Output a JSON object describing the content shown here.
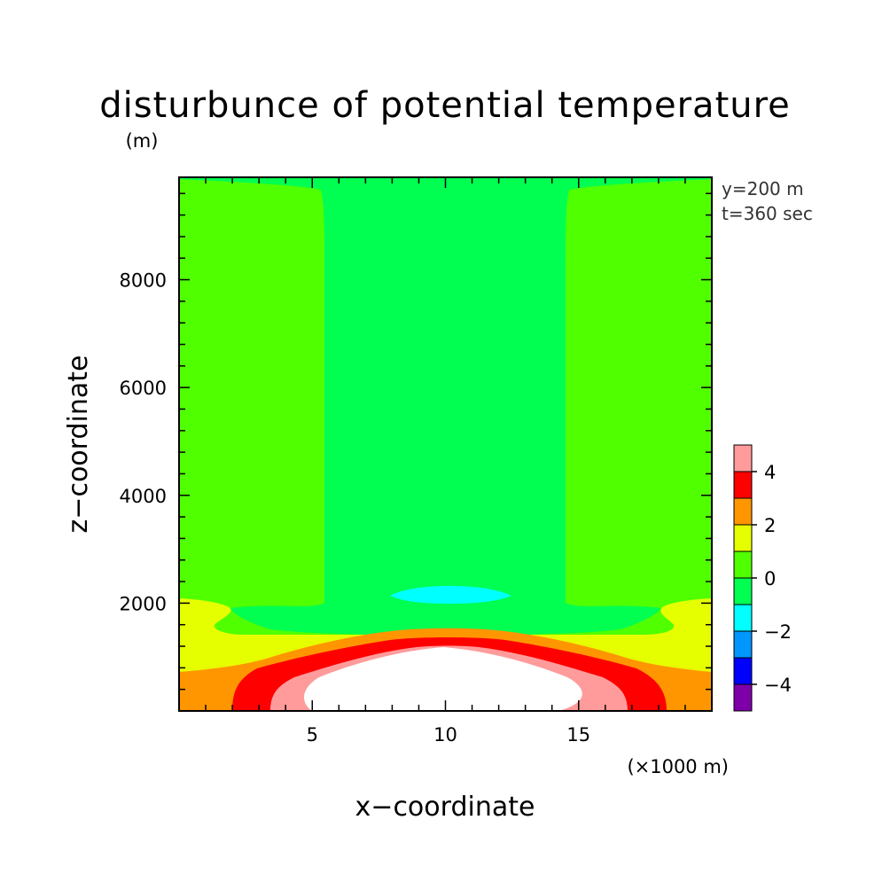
{
  "chart_data": {
    "type": "heatmap",
    "title": "disturbunce of potential temperature",
    "subtitle": "(m)",
    "xlabel": "x−coordinate",
    "ylabel": "z−coordinate",
    "x_unit": "(×1000 m)",
    "annotations": [
      "y=200 m",
      "t=360 sec"
    ],
    "xlim": [
      0,
      20
    ],
    "ylim": [
      0,
      9900
    ],
    "xticks": [
      5,
      10,
      15
    ],
    "xtick_labels": [
      "5",
      "10",
      "15"
    ],
    "yticks": [
      2000,
      4000,
      6000,
      8000
    ],
    "ytick_labels": [
      "2000",
      "4000",
      "6000",
      "8000"
    ],
    "colorbar": {
      "levels": [
        -5,
        -4,
        -3,
        -2,
        -1,
        0,
        1,
        2,
        3,
        4,
        5
      ],
      "tick_values": [
        -4,
        -2,
        0,
        2,
        4
      ],
      "tick_labels": [
        "−4",
        "−2",
        "0",
        "2",
        "4"
      ],
      "colors": [
        "#7d00a8",
        "#0000ff",
        "#0096ff",
        "#00ffff",
        "#00ff50",
        "#50ff00",
        "#e6ff00",
        "#ff9600",
        "#ff0000",
        "#ff9b9b"
      ]
    },
    "regions": [
      {
        "range": [
          0,
          1
        ],
        "color": "#50ff00",
        "description": "outer background"
      },
      {
        "range": [
          -1,
          0
        ],
        "color": "#00ff50",
        "description": "central column and layer above the ridge"
      },
      {
        "range": [
          -2,
          -1
        ],
        "color": "#00ffff",
        "description": "small cool pocket near x=10, z=2200"
      },
      {
        "range": [
          1,
          2
        ],
        "color": "#e6ff00",
        "description": "low-level band"
      },
      {
        "range": [
          2,
          3
        ],
        "color": "#ff9600",
        "description": "near-surface band"
      },
      {
        "range": [
          3,
          4
        ],
        "color": "#ff0000",
        "description": "warm arch"
      },
      {
        "range": [
          4,
          5
        ],
        "color": "#ff9b9b",
        "description": "inner warm arch"
      },
      {
        "range": [
          5,
          null
        ],
        "color": "#ffffff",
        "description": "core above 5 (unshaded)"
      }
    ]
  }
}
